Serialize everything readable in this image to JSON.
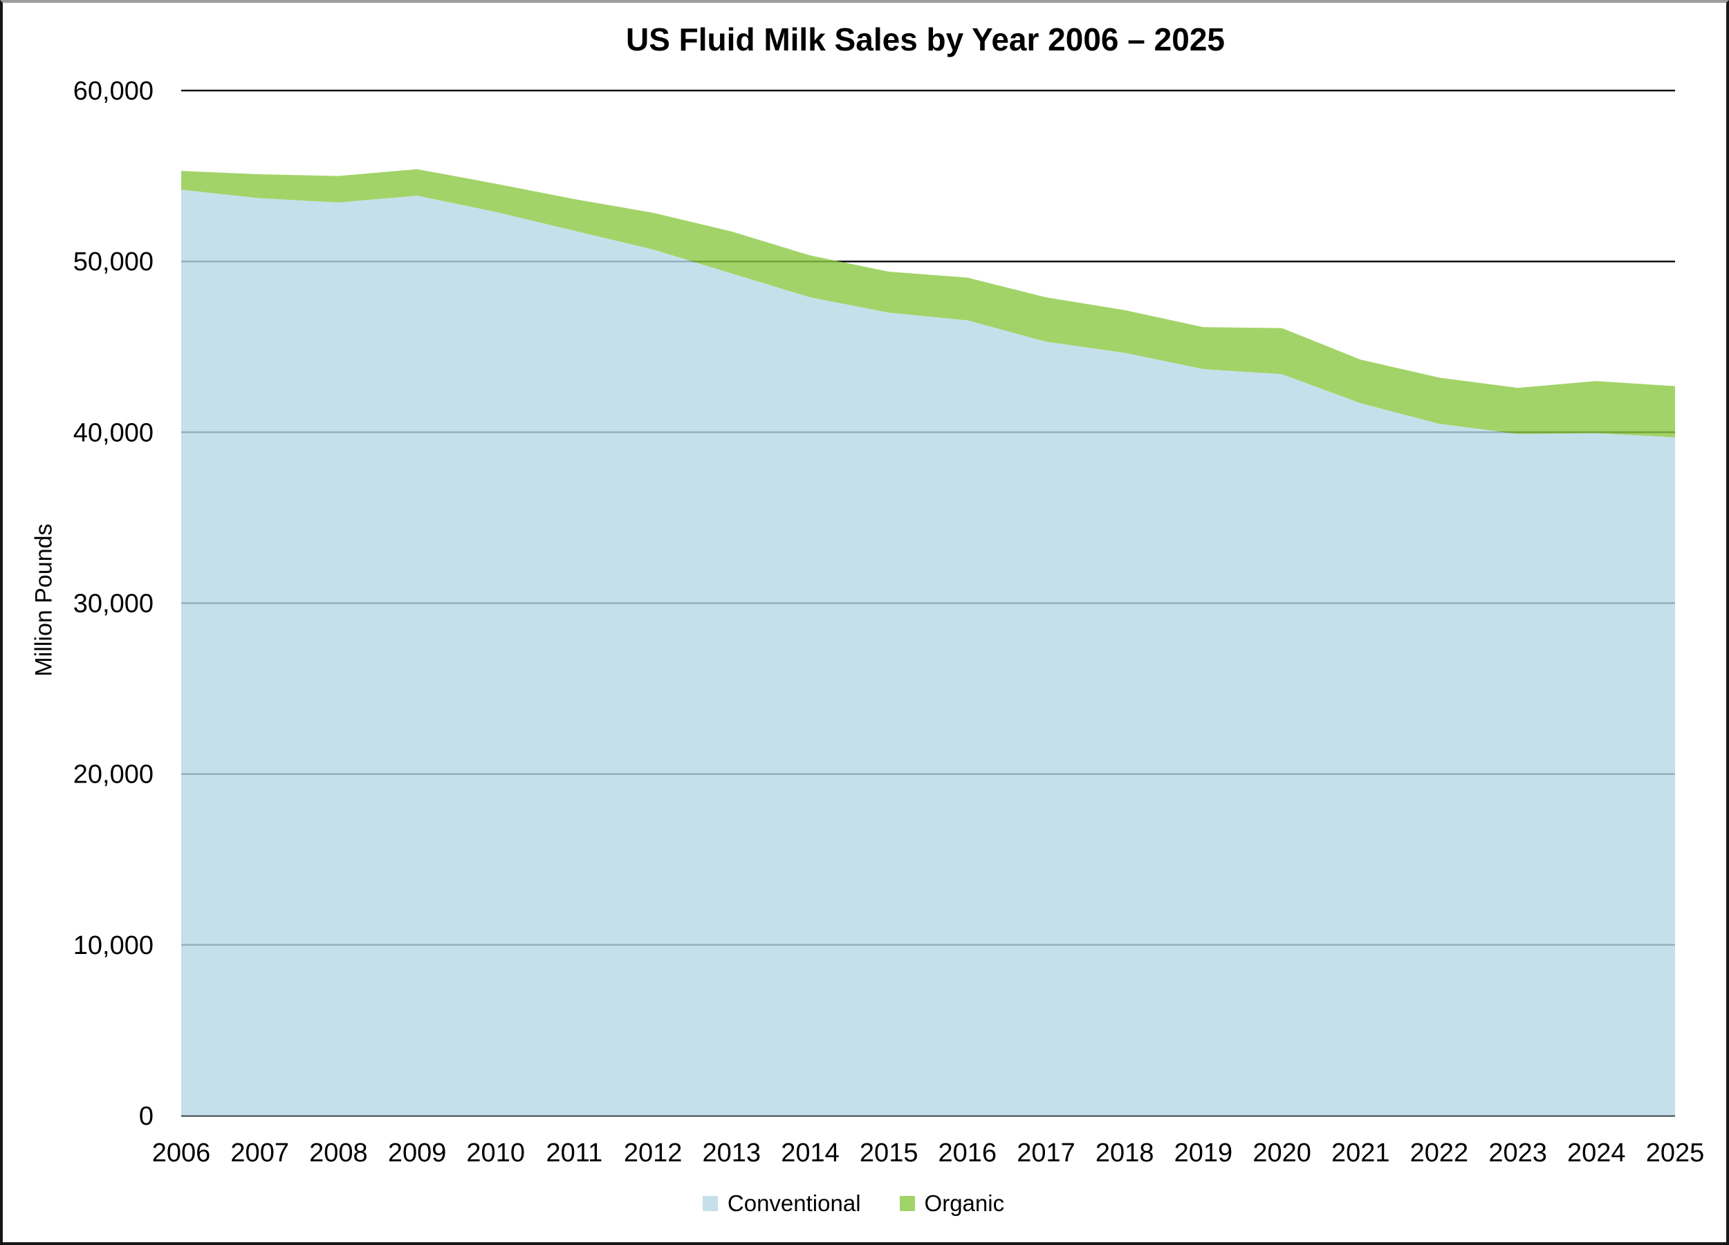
{
  "chart_data": {
    "type": "area",
    "stacked": true,
    "title": "US Fluid Milk Sales by Year 2006 – 2025",
    "ylabel": "Million Pounds",
    "xlabel": "",
    "ylim": [
      0,
      60000
    ],
    "y_ticks": [
      0,
      10000,
      20000,
      30000,
      40000,
      50000,
      60000
    ],
    "y_tick_labels": [
      "0",
      "10,000",
      "20,000",
      "30,000",
      "40,000",
      "50,000",
      "60,000"
    ],
    "categories": [
      "2006",
      "2007",
      "2008",
      "2009",
      "2010",
      "2011",
      "2012",
      "2013",
      "2014",
      "2015",
      "2016",
      "2017",
      "2018",
      "2019",
      "2020",
      "2021",
      "2022",
      "2023",
      "2024",
      "2025"
    ],
    "series": [
      {
        "name": "Conventional",
        "swatch_color": "#C6E0EB",
        "fill_color": "rgba(184,216,230,0.8)",
        "values": [
          54200,
          53700,
          53450,
          53850,
          52900,
          51800,
          50700,
          49300,
          47900,
          47000,
          46550,
          45300,
          44650,
          43700,
          43400,
          41700,
          40500,
          39900,
          39950,
          39700
        ]
      },
      {
        "name": "Organic",
        "swatch_color": "#A2D368",
        "fill_color": "rgba(139,200,66,0.8)",
        "values": [
          1100,
          1400,
          1550,
          1550,
          1650,
          1850,
          2150,
          2450,
          2450,
          2400,
          2500,
          2600,
          2500,
          2450,
          2700,
          2550,
          2700,
          2700,
          3050,
          3000
        ]
      }
    ],
    "stacked_totals": [
      55300,
      55100,
      55000,
      55400,
      54550,
      53650,
      52850,
      51750,
      50350,
      49400,
      49050,
      47900,
      47150,
      46150,
      46100,
      44250,
      43200,
      42600,
      43000,
      42700
    ],
    "legend_position": "bottom-center",
    "grid": "horizontal",
    "grid_color": "#111111"
  }
}
